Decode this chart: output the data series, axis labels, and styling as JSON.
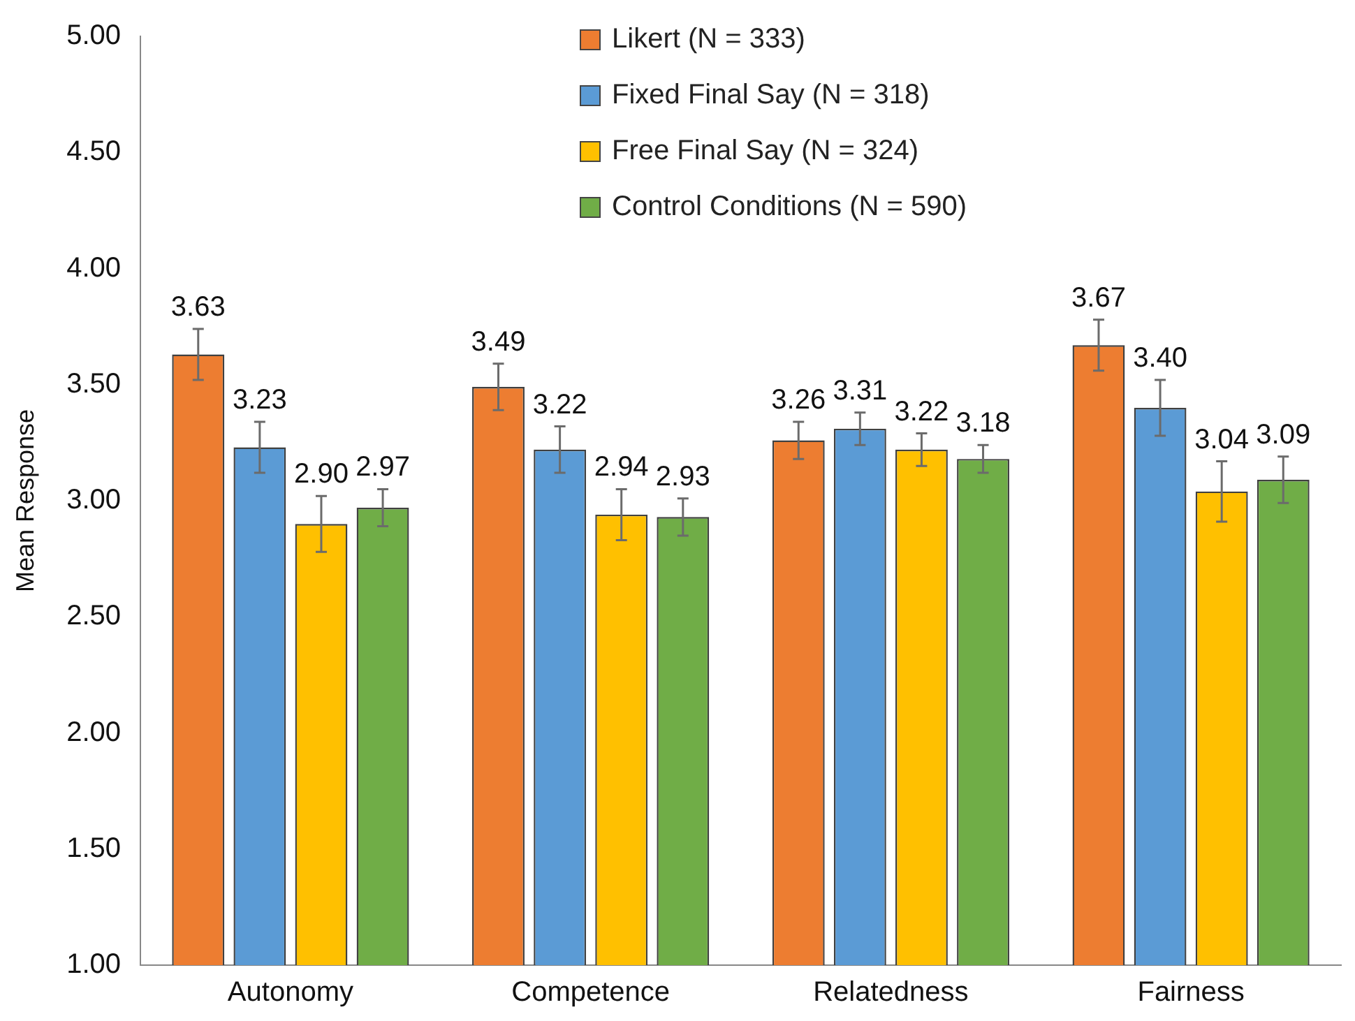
{
  "chart_data": {
    "type": "bar",
    "ylabel": "Mean Response",
    "categories": [
      "Autonomy",
      "Competence",
      "Relatedness",
      "Fairness"
    ],
    "series": [
      {
        "name": "Likert (N = 333)",
        "color": "#ed7d31",
        "values": [
          3.63,
          3.49,
          3.26,
          3.67
        ],
        "value_labels": [
          "3.63",
          "3.49",
          "3.26",
          "3.67"
        ],
        "errors": [
          0.11,
          0.1,
          0.08,
          0.11
        ]
      },
      {
        "name": "Fixed Final Say (N = 318)",
        "color": "#5b9bd5",
        "values": [
          3.23,
          3.22,
          3.31,
          3.4
        ],
        "value_labels": [
          "3.23",
          "3.22",
          "3.31",
          "3.40"
        ],
        "errors": [
          0.11,
          0.1,
          0.07,
          0.12
        ]
      },
      {
        "name": "Free Final Say (N = 324)",
        "color": "#ffc000",
        "values": [
          2.9,
          2.94,
          3.22,
          3.04
        ],
        "value_labels": [
          "2.90",
          "2.94",
          "3.22",
          "3.04"
        ],
        "errors": [
          0.12,
          0.11,
          0.07,
          0.13
        ]
      },
      {
        "name": "Control Conditions (N = 590)",
        "color": "#70ad47",
        "values": [
          2.97,
          2.93,
          3.18,
          3.09
        ],
        "value_labels": [
          "2.97",
          "2.93",
          "3.18",
          "3.09"
        ],
        "errors": [
          0.08,
          0.08,
          0.06,
          0.1
        ]
      }
    ],
    "ylim": [
      1,
      5
    ],
    "yticks": [
      {
        "value": 1,
        "label": "1.00"
      },
      {
        "value": 1.5,
        "label": "1.50"
      },
      {
        "value": 2,
        "label": "2.00"
      },
      {
        "value": 2.5,
        "label": "2.50"
      },
      {
        "value": 3,
        "label": "3.00"
      },
      {
        "value": 3.5,
        "label": "3.50"
      },
      {
        "value": 4,
        "label": "4.00"
      },
      {
        "value": 4.5,
        "label": "4.50"
      },
      {
        "value": 5,
        "label": "5.00"
      }
    ],
    "grid": false,
    "legend": "top"
  }
}
